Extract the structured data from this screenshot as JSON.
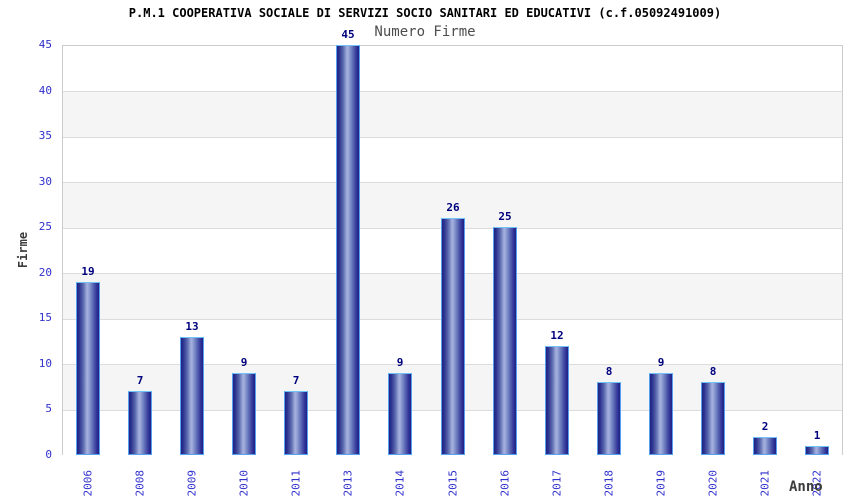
{
  "header": {
    "title": "P.M.1 COOPERATIVA SOCIALE DI SERVIZI SOCIO SANITARI ED EDUCATIVI (c.f.05092491009)",
    "subtitle": "Numero Firme"
  },
  "chart_data": {
    "type": "bar",
    "title": "Numero Firme",
    "categories": [
      "2006",
      "2008",
      "2009",
      "2010",
      "2011",
      "2013",
      "2014",
      "2015",
      "2016",
      "2017",
      "2018",
      "2019",
      "2020",
      "2021",
      "2022"
    ],
    "values": [
      19,
      7,
      13,
      9,
      7,
      45,
      9,
      26,
      25,
      12,
      8,
      9,
      8,
      2,
      1
    ],
    "xlabel": "Anno",
    "ylabel": "Firme",
    "ylim": [
      0,
      45
    ],
    "ytick_step": 5,
    "yticks": [
      0,
      5,
      10,
      15,
      20,
      25,
      30,
      35,
      40,
      45
    ],
    "legend": "none",
    "grid": "horizontal gridlines with alternating background bands",
    "colors": {
      "bar_dark": "#1f2282",
      "bar_highlight": "#a6b2df",
      "bar_border": "#55a0f0",
      "value_label": "#00007e",
      "tick_label": "#3030cc",
      "axis_title": "#3c3c3c",
      "subtitle": "#4d4d4d",
      "title": "#000000",
      "band_gray": "#f5f5f5",
      "band_white": "#ffffff",
      "gridline": "#dcdcdc",
      "plot_border": "#cccccc"
    }
  }
}
